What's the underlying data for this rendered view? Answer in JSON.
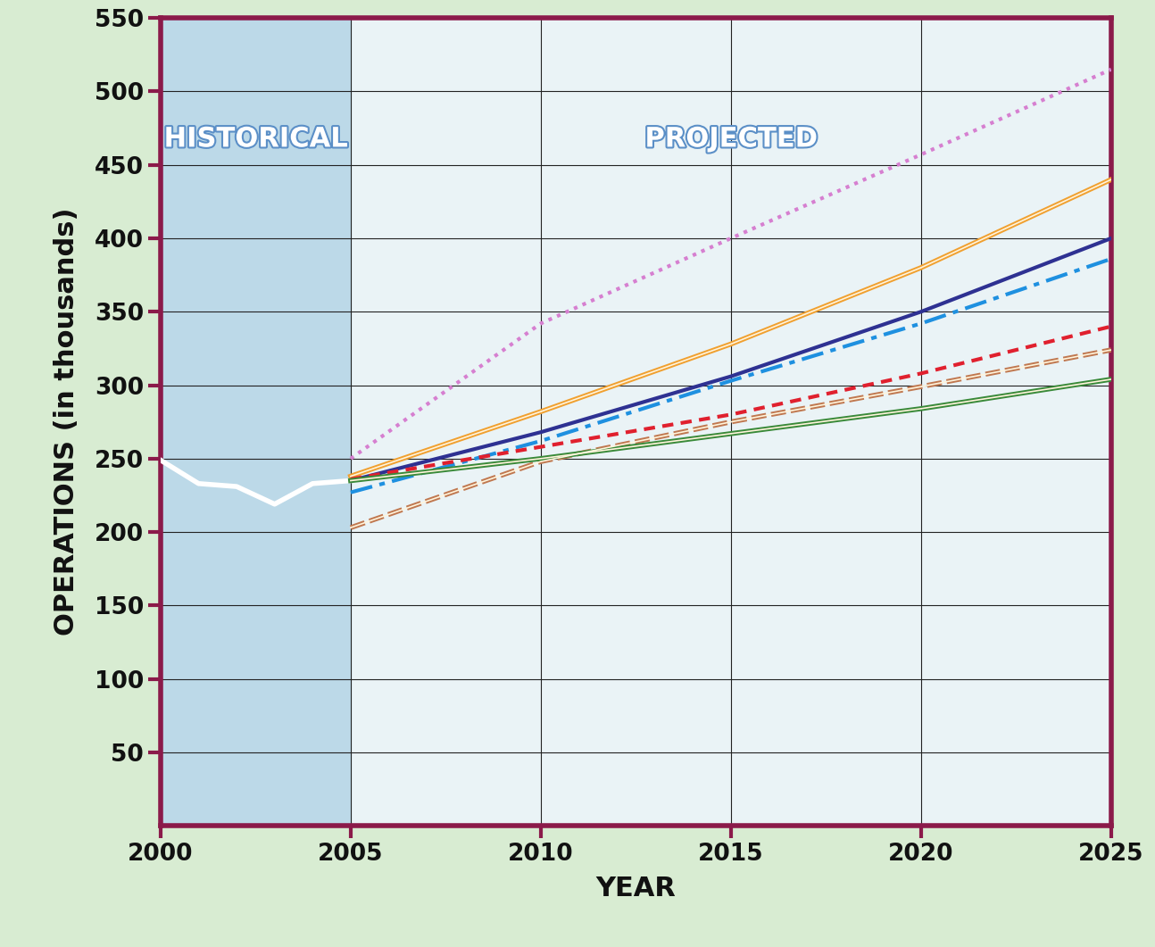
{
  "chart_data": {
    "type": "line",
    "x_label": "YEAR",
    "y_label": "OPERATIONS (in thousands)",
    "annotations": [
      "HISTORICAL",
      "PROJECTED"
    ],
    "xlim": [
      2000,
      2025
    ],
    "xticks": [
      2000,
      2005,
      2010,
      2015,
      2020,
      2025
    ],
    "ylim": [
      0,
      550
    ],
    "yticks": [
      50,
      100,
      150,
      200,
      250,
      300,
      350,
      400,
      450,
      500,
      550
    ],
    "grid": true,
    "series": [
      {
        "color": "#ffffff",
        "line_style": "solid",
        "x": [
          2000,
          2001,
          2002,
          2003,
          2004,
          2005
        ],
        "values": [
          249,
          233,
          231,
          219,
          233,
          235
        ]
      },
      {
        "color": "#d67fd0",
        "line_style": "dotted",
        "x": [
          2005,
          2010,
          2015,
          2020,
          2025
        ],
        "values": [
          250,
          342,
          400,
          457,
          515
        ]
      },
      {
        "color": "#f0a030",
        "line_style": "double",
        "x": [
          2005,
          2010,
          2015,
          2020,
          2025
        ],
        "values": [
          238,
          282,
          328,
          380,
          440
        ]
      },
      {
        "color": "#2e3192",
        "line_style": "solid",
        "x": [
          2005,
          2010,
          2015,
          2020,
          2025
        ],
        "values": [
          235,
          268,
          306,
          350,
          400
        ]
      },
      {
        "color": "#1e90e0",
        "line_style": "dashdot",
        "x": [
          2005,
          2010,
          2015,
          2020,
          2025
        ],
        "values": [
          227,
          262,
          303,
          342,
          386
        ]
      },
      {
        "color": "#e0202e",
        "line_style": "dashed",
        "x": [
          2005,
          2010,
          2015,
          2020,
          2025
        ],
        "values": [
          236,
          258,
          280,
          308,
          340
        ]
      },
      {
        "color": "#c07850",
        "line_style": "double_dashed",
        "x": [
          2005,
          2010,
          2015,
          2020,
          2025
        ],
        "values": [
          203,
          248,
          275,
          299,
          324
        ]
      },
      {
        "color": "#3a8a3a",
        "line_style": "double",
        "x": [
          2005,
          2010,
          2015,
          2020,
          2025
        ],
        "values": [
          235,
          250,
          267,
          284,
          304
        ]
      }
    ]
  }
}
